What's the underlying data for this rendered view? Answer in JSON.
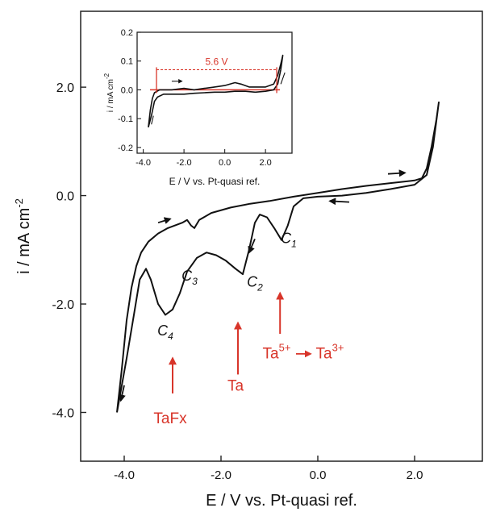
{
  "chart_data": [
    {
      "type": "line",
      "xlabel": "E / V vs. Pt-quasi ref.",
      "ylabel": "i / mA cm",
      "ylabel_sup": "-2",
      "xlim": [
        -4.9,
        3.4
      ],
      "ylim": [
        -4.9,
        3.4
      ],
      "x_ticks": [
        -4.0,
        -2.0,
        0.0,
        2.0
      ],
      "x_tick_labels": [
        "-4.0",
        "-2.0",
        "0.0",
        "2.0"
      ],
      "y_ticks": [
        -4.0,
        -2.0,
        0.0,
        2.0
      ],
      "y_tick_labels": [
        "-4.0",
        "-2.0",
        "0.0",
        "2.0"
      ],
      "grid": false,
      "series": [
        {
          "color": "#111111",
          "points": [
            [
              -4.15,
              -4.0
            ],
            [
              -4.05,
              -3.2
            ],
            [
              -3.95,
              -2.3
            ],
            [
              -3.85,
              -1.7
            ],
            [
              -3.75,
              -1.3
            ],
            [
              -3.65,
              -1.05
            ],
            [
              -3.5,
              -0.85
            ],
            [
              -3.3,
              -0.7
            ],
            [
              -3.1,
              -0.6
            ],
            [
              -2.95,
              -0.55
            ],
            [
              -2.8,
              -0.5
            ],
            [
              -2.7,
              -0.45
            ],
            [
              -2.62,
              -0.55
            ],
            [
              -2.55,
              -0.6
            ],
            [
              -2.45,
              -0.45
            ],
            [
              -2.2,
              -0.32
            ],
            [
              -1.8,
              -0.22
            ],
            [
              -1.4,
              -0.15
            ],
            [
              -1.0,
              -0.1
            ],
            [
              -0.5,
              -0.02
            ],
            [
              0.0,
              0.05
            ],
            [
              0.5,
              0.12
            ],
            [
              1.0,
              0.18
            ],
            [
              1.5,
              0.23
            ],
            [
              2.0,
              0.28
            ],
            [
              2.15,
              0.32
            ],
            [
              2.25,
              0.5
            ],
            [
              2.35,
              0.9
            ],
            [
              2.45,
              1.4
            ],
            [
              2.5,
              1.72
            ],
            [
              2.38,
              0.9
            ],
            [
              2.25,
              0.38
            ],
            [
              2.0,
              0.2
            ],
            [
              1.5,
              0.12
            ],
            [
              1.0,
              0.05
            ],
            [
              0.5,
              0.0
            ],
            [
              0.0,
              -0.02
            ],
            [
              -0.3,
              -0.05
            ],
            [
              -0.5,
              -0.2
            ],
            [
              -0.62,
              -0.55
            ],
            [
              -0.75,
              -0.82
            ],
            [
              -0.9,
              -0.6
            ],
            [
              -1.05,
              -0.4
            ],
            [
              -1.2,
              -0.35
            ],
            [
              -1.3,
              -0.5
            ],
            [
              -1.42,
              -1.0
            ],
            [
              -1.55,
              -1.45
            ],
            [
              -1.7,
              -1.35
            ],
            [
              -1.9,
              -1.2
            ],
            [
              -2.1,
              -1.1
            ],
            [
              -2.3,
              -1.05
            ],
            [
              -2.5,
              -1.15
            ],
            [
              -2.7,
              -1.4
            ],
            [
              -2.85,
              -1.8
            ],
            [
              -3.0,
              -2.1
            ],
            [
              -3.15,
              -2.2
            ],
            [
              -3.3,
              -2.0
            ],
            [
              -3.45,
              -1.55
            ],
            [
              -3.55,
              -1.35
            ],
            [
              -3.68,
              -1.55
            ],
            [
              -3.8,
              -2.2
            ],
            [
              -3.95,
              -3.0
            ],
            [
              -4.1,
              -3.75
            ],
            [
              -4.15,
              -4.0
            ]
          ]
        }
      ],
      "annotations": [
        {
          "label": "C",
          "sub": "1",
          "x": -0.6,
          "y": -0.88,
          "color": "#111111"
        },
        {
          "label": "C",
          "sub": "2",
          "x": -1.3,
          "y": -1.68,
          "color": "#111111"
        },
        {
          "label": "C",
          "sub": "3",
          "x": -2.65,
          "y": -1.57,
          "color": "#111111"
        },
        {
          "label": "C",
          "sub": "4",
          "x": -3.15,
          "y": -2.58,
          "color": "#111111"
        },
        {
          "label": "TaFx",
          "x": -3.05,
          "y": -4.2,
          "color": "#d8352a"
        },
        {
          "label": "Ta",
          "x": -1.7,
          "y": -3.6,
          "color": "#d8352a"
        },
        {
          "label": "Ta",
          "sup": "5+",
          "x": -0.85,
          "y": -3.0,
          "color": "#d8352a"
        },
        {
          "label": "Ta",
          "sup": "3+",
          "x": 0.25,
          "y": -3.0,
          "color": "#d8352a"
        }
      ],
      "red_arrows": [
        {
          "x": -3.0,
          "y_from": -3.65,
          "y_to": -3.0
        },
        {
          "x": -1.65,
          "y_from": -3.3,
          "y_to": -2.35
        },
        {
          "x": -0.78,
          "y_from": -2.55,
          "y_to": -1.8
        }
      ],
      "scan_arrows": [
        {
          "x1": -3.3,
          "y1": -0.5,
          "x2": -3.05,
          "y2": -0.43,
          "color": "#111111"
        },
        {
          "x1": 1.45,
          "y1": 0.4,
          "x2": 1.8,
          "y2": 0.42,
          "color": "#111111"
        },
        {
          "x1": 0.65,
          "y1": -0.12,
          "x2": 0.25,
          "y2": -0.1,
          "color": "#111111"
        },
        {
          "x1": -1.3,
          "y1": -0.8,
          "x2": -1.42,
          "y2": -1.05,
          "color": "#111111"
        },
        {
          "x1": -4.0,
          "y1": -3.5,
          "x2": -4.07,
          "y2": -3.78,
          "color": "#111111"
        }
      ],
      "reaction_arrow": {
        "x1": -0.45,
        "y1": -2.92,
        "x2": -0.15,
        "y2": -2.92,
        "color": "#d8352a"
      }
    },
    {
      "type": "line",
      "role": "inset",
      "xlabel": "E / V vs. Pt-quasi ref.",
      "ylabel": "i / mA cm",
      "ylabel_sup": "-2",
      "xlim": [
        -4.3,
        3.3
      ],
      "ylim": [
        -0.22,
        0.2
      ],
      "x_ticks": [
        -4.0,
        -2.0,
        0.0,
        2.0
      ],
      "x_tick_labels": [
        "-4.0",
        "-2.0",
        "0.0",
        "2.0"
      ],
      "y_ticks": [
        -0.2,
        -0.1,
        0.0,
        0.1,
        0.2
      ],
      "y_tick_labels": [
        "-0.2",
        "-0.1",
        "0.0",
        "0.1",
        "0.2"
      ],
      "series": [
        {
          "color": "#111111",
          "points": [
            [
              -3.75,
              -0.13
            ],
            [
              -3.65,
              -0.07
            ],
            [
              -3.55,
              -0.03
            ],
            [
              -3.45,
              -0.01
            ],
            [
              -3.2,
              0.0
            ],
            [
              -2.6,
              0.0
            ],
            [
              -2.0,
              0.005
            ],
            [
              -1.5,
              0.0
            ],
            [
              -1.0,
              0.005
            ],
            [
              -0.5,
              0.01
            ],
            [
              0.0,
              0.015
            ],
            [
              0.5,
              0.025
            ],
            [
              0.8,
              0.02
            ],
            [
              1.2,
              0.01
            ],
            [
              1.6,
              0.01
            ],
            [
              2.0,
              0.01
            ],
            [
              2.4,
              0.02
            ],
            [
              2.6,
              0.05
            ],
            [
              2.75,
              0.09
            ],
            [
              2.85,
              0.12
            ],
            [
              2.75,
              0.07
            ],
            [
              2.6,
              0.02
            ],
            [
              2.4,
              0.0
            ],
            [
              2.0,
              -0.005
            ],
            [
              1.5,
              -0.008
            ],
            [
              1.0,
              -0.005
            ],
            [
              0.5,
              -0.005
            ],
            [
              0.0,
              -0.008
            ],
            [
              -0.5,
              -0.008
            ],
            [
              -1.0,
              -0.01
            ],
            [
              -1.5,
              -0.012
            ],
            [
              -2.0,
              -0.015
            ],
            [
              -2.5,
              -0.015
            ],
            [
              -3.0,
              -0.015
            ],
            [
              -3.3,
              -0.025
            ],
            [
              -3.45,
              -0.04
            ],
            [
              -3.6,
              -0.09
            ],
            [
              -3.75,
              -0.13
            ]
          ]
        }
      ],
      "window_annotation": {
        "label": "5.6 V",
        "x_start": -3.35,
        "x_end": 2.55,
        "y": 0.07,
        "color": "#d8352a"
      }
    }
  ]
}
